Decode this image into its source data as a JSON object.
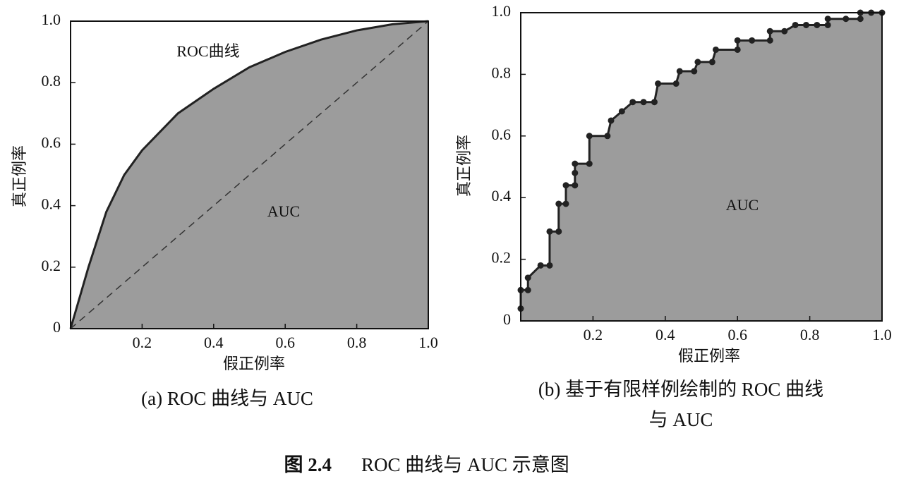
{
  "chart_data": [
    {
      "type": "line",
      "caption": [
        "(a) ROC 曲线与 AUC"
      ],
      "xlabel": "假正例率",
      "ylabel": "真正例率",
      "annotations": [
        "ROC曲线",
        "AUC"
      ],
      "xlim": [
        0,
        1
      ],
      "ylim": [
        0,
        1
      ],
      "xticks": [
        0.2,
        0.4,
        0.6,
        0.8,
        {
          "value": 1,
          "label": "1.0"
        }
      ],
      "yticks": [
        0,
        0.2,
        0.4,
        0.6,
        0.8,
        {
          "value": 1,
          "label": "1.0"
        }
      ],
      "series": [
        {
          "color": "#222222",
          "fill": "#9c9c9c",
          "dash": false,
          "markers": false,
          "x": [
            0,
            0.05,
            0.1,
            0.15,
            0.2,
            0.3,
            0.4,
            0.5,
            0.6,
            0.7,
            0.8,
            0.9,
            1
          ],
          "values": [
            0,
            0.2,
            0.38,
            0.5,
            0.58,
            0.7,
            0.78,
            0.85,
            0.9,
            0.94,
            0.97,
            0.99,
            1
          ]
        },
        {
          "color": "#333333",
          "fill": null,
          "dash": true,
          "markers": false,
          "x": [
            0,
            1
          ],
          "values": [
            0,
            1
          ]
        }
      ]
    },
    {
      "type": "line",
      "caption": [
        "(b) 基于有限样例绘制的 ROC 曲线",
        "与 AUC"
      ],
      "xlabel": "假正例率",
      "ylabel": "真正例率",
      "annotations": [
        "AUC"
      ],
      "xlim": [
        0,
        1
      ],
      "ylim": [
        0,
        1
      ],
      "xticks": [
        0.2,
        0.4,
        0.6,
        0.8,
        {
          "value": 1,
          "label": "1.0"
        }
      ],
      "yticks": [
        0,
        0.2,
        0.4,
        0.6,
        0.8,
        {
          "value": 1,
          "label": "1.0"
        }
      ],
      "series": [
        {
          "color": "#222222",
          "fill": "#9c9c9c",
          "dash": false,
          "markers": true,
          "x": [
            0,
            0,
            0.02,
            0.02,
            0.055,
            0.08,
            0.08,
            0.105,
            0.105,
            0.125,
            0.125,
            0.15,
            0.15,
            0.15,
            0.19,
            0.19,
            0.24,
            0.25,
            0.28,
            0.31,
            0.34,
            0.37,
            0.38,
            0.43,
            0.44,
            0.48,
            0.49,
            0.53,
            0.54,
            0.6,
            0.6,
            0.64,
            0.69,
            0.69,
            0.73,
            0.76,
            0.79,
            0.82,
            0.85,
            0.85,
            0.9,
            0.94,
            0.94,
            0.97,
            1
          ],
          "values": [
            0.04,
            0.1,
            0.1,
            0.14,
            0.18,
            0.18,
            0.29,
            0.29,
            0.38,
            0.38,
            0.44,
            0.44,
            0.48,
            0.51,
            0.51,
            0.6,
            0.6,
            0.65,
            0.68,
            0.71,
            0.71,
            0.71,
            0.77,
            0.77,
            0.81,
            0.81,
            0.84,
            0.84,
            0.88,
            0.88,
            0.91,
            0.91,
            0.91,
            0.94,
            0.94,
            0.96,
            0.96,
            0.96,
            0.96,
            0.98,
            0.98,
            0.98,
            1,
            1,
            1
          ]
        }
      ]
    }
  ],
  "figure_caption": {
    "label": "图 2.4",
    "text": "ROC 曲线与 AUC 示意图"
  }
}
